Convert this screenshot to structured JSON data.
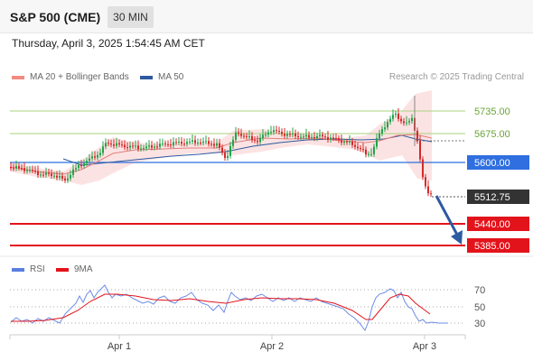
{
  "header": {
    "title": "S&P 500 (CME)",
    "timeframe": "30 MIN"
  },
  "timestamp": "Thursday, April 3, 2025 1:54:45 AM CET",
  "legend": {
    "ma20_label": "MA 20 + Bollinger Bands",
    "ma50_label": "MA 50",
    "ma20_color": "#f28b82",
    "ma50_color": "#2d5aa0"
  },
  "credit": "Research © 2025 Trading Central",
  "price_levels": [
    {
      "label": "5735.00",
      "kind": "resistance",
      "color": "#7ab648"
    },
    {
      "label": "5675.00",
      "kind": "resistance",
      "color": "#7ab648"
    },
    {
      "label": "5600.00",
      "kind": "pivot",
      "color": "#2f6fe0"
    },
    {
      "label": "5512.75",
      "kind": "last",
      "color": "#333333"
    },
    {
      "label": "5440.00",
      "kind": "support",
      "color": "#e3131b"
    },
    {
      "label": "5385.00",
      "kind": "support",
      "color": "#e3131b"
    }
  ],
  "rsi_legend": {
    "rsi_label": "RSI",
    "ma_label": "9MA",
    "rsi_color": "#5b7fe0",
    "ma_color": "#e3131b"
  },
  "rsi_levels": [
    "70",
    "50",
    "30"
  ],
  "x_axis": [
    "Apr 1",
    "Apr 2",
    "Apr 3"
  ],
  "colors": {
    "up": "#21a34a",
    "down": "#d62828",
    "arrow": "#2d5aa0"
  }
}
